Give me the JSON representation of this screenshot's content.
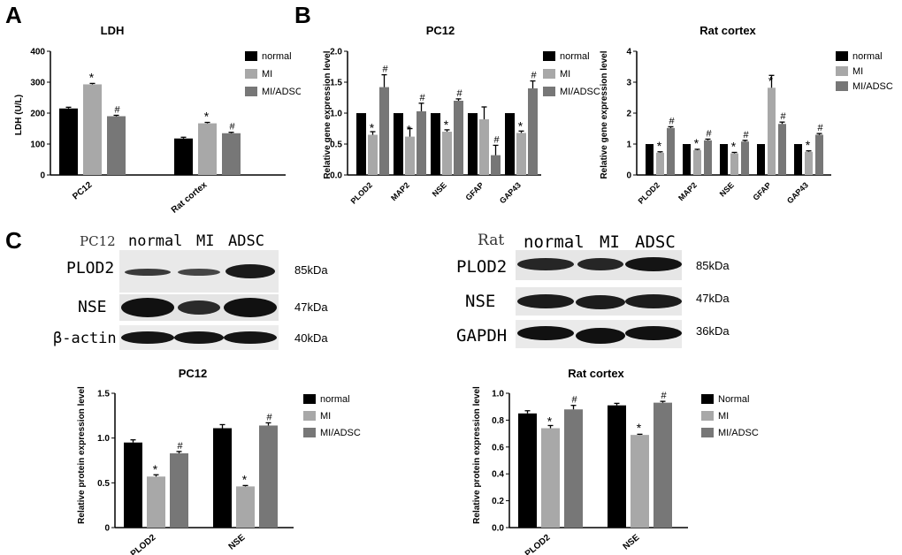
{
  "panels": {
    "a": "A",
    "b": "B",
    "c": "C"
  },
  "legend_colors": [
    "#000000",
    "#a8a8a8",
    "#777777"
  ],
  "chart_data": [
    {
      "id": "ldh",
      "type": "bar",
      "title": "LDH",
      "ylabel": "LDH (U/L)",
      "categories": [
        "PC12",
        "Rat cortex"
      ],
      "ylim": [
        0,
        400
      ],
      "yticks": [
        "0",
        "100",
        "200",
        "300",
        "400"
      ],
      "series": [
        {
          "name": "normal",
          "values": [
            215,
            118
          ],
          "errors": [
            4,
            4
          ],
          "marks": [
            "",
            ""
          ]
        },
        {
          "name": "MI",
          "values": [
            293,
            167
          ],
          "errors": [
            3,
            3
          ],
          "marks": [
            "*",
            "*"
          ]
        },
        {
          "name": "MI/ADSC",
          "values": [
            190,
            135
          ],
          "errors": [
            3,
            3
          ],
          "marks": [
            "#",
            "#"
          ]
        }
      ]
    },
    {
      "id": "pc12_gene",
      "type": "bar",
      "title": "PC12",
      "ylabel": "Relative gene expression level",
      "categories": [
        "PLOD2",
        "MAP2",
        "NSE",
        "GFAP",
        "GAP43"
      ],
      "ylim": [
        0,
        2.0
      ],
      "yticks": [
        "0.0",
        "0.5",
        "1.0",
        "1.5",
        "2.0"
      ],
      "series": [
        {
          "name": "normal",
          "values": [
            1.0,
            1.0,
            1.0,
            1.0,
            1.0
          ],
          "errors": [
            0,
            0,
            0,
            0,
            0
          ],
          "marks": [
            "",
            "",
            "",
            "",
            ""
          ]
        },
        {
          "name": "MI",
          "values": [
            0.65,
            0.62,
            0.7,
            0.9,
            0.68
          ],
          "errors": [
            0.05,
            0.13,
            0.03,
            0.2,
            0.03
          ],
          "marks": [
            "*",
            "*",
            "*",
            "",
            "*"
          ]
        },
        {
          "name": "MI/ADSC",
          "values": [
            1.42,
            1.03,
            1.2,
            0.32,
            1.4
          ],
          "errors": [
            0.2,
            0.13,
            0.03,
            0.16,
            0.12
          ],
          "marks": [
            "#",
            "#",
            "#",
            "#",
            "#"
          ]
        }
      ]
    },
    {
      "id": "rat_gene",
      "type": "bar",
      "title": "Rat cortex",
      "ylabel": "Relative gene expression level",
      "categories": [
        "PLOD2",
        "MAP2",
        "NSE",
        "GFAP",
        "GAP43"
      ],
      "ylim": [
        0,
        4
      ],
      "yticks": [
        "0",
        "1",
        "2",
        "3",
        "4"
      ],
      "series": [
        {
          "name": "normal",
          "values": [
            1.0,
            1.0,
            1.0,
            1.0,
            1.0
          ],
          "errors": [
            0,
            0,
            0,
            0,
            0
          ],
          "marks": [
            "",
            "",
            "",
            "",
            ""
          ]
        },
        {
          "name": "MI",
          "values": [
            0.72,
            0.8,
            0.7,
            2.82,
            0.75
          ],
          "errors": [
            0.03,
            0.03,
            0.03,
            0.4,
            0.03
          ],
          "marks": [
            "*",
            "*",
            "*",
            "*",
            "*"
          ]
        },
        {
          "name": "MI/ADSC",
          "values": [
            1.52,
            1.12,
            1.08,
            1.65,
            1.3
          ],
          "errors": [
            0.04,
            0.04,
            0.04,
            0.06,
            0.04
          ],
          "marks": [
            "#",
            "#",
            "#",
            "#",
            "#"
          ]
        }
      ]
    },
    {
      "id": "pc12_protein",
      "type": "bar",
      "title": "PC12",
      "ylabel": "Relative protein expression level",
      "categories": [
        "PLOD2",
        "NSE"
      ],
      "ylim": [
        0,
        1.5
      ],
      "yticks": [
        "0",
        "0.5",
        "1.0",
        "1.5"
      ],
      "series": [
        {
          "name": "normal",
          "values": [
            0.95,
            1.11
          ],
          "errors": [
            0.03,
            0.04
          ],
          "marks": [
            "",
            ""
          ]
        },
        {
          "name": "MI",
          "values": [
            0.57,
            0.46
          ],
          "errors": [
            0.02,
            0.01
          ],
          "marks": [
            "*",
            "*"
          ]
        },
        {
          "name": "MI/ADSC",
          "values": [
            0.83,
            1.14
          ],
          "errors": [
            0.02,
            0.03
          ],
          "marks": [
            "#",
            "#"
          ]
        }
      ]
    },
    {
      "id": "rat_protein",
      "type": "bar",
      "title": "Rat cortex",
      "ylabel": "Relative protein expression level",
      "categories": [
        "PLOD2",
        "NSE"
      ],
      "ylim": [
        0,
        1.0
      ],
      "yticks": [
        "0.0",
        "0.2",
        "0.4",
        "0.6",
        "0.8",
        "1.0"
      ],
      "series": [
        {
          "name": "Normal",
          "values": [
            0.85,
            0.91
          ],
          "errors": [
            0.02,
            0.015
          ],
          "marks": [
            "",
            ""
          ]
        },
        {
          "name": "MI",
          "values": [
            0.74,
            0.69
          ],
          "errors": [
            0.02,
            0.005
          ],
          "marks": [
            "*",
            "*"
          ]
        },
        {
          "name": "MI/ADSC",
          "values": [
            0.88,
            0.93
          ],
          "errors": [
            0.03,
            0.01
          ],
          "marks": [
            "#",
            "#"
          ]
        }
      ]
    }
  ],
  "blots": {
    "pc12": {
      "header": "PC12",
      "lanes": [
        "normal",
        "MI",
        "ADSC"
      ],
      "rows": [
        {
          "label": "PLOD2",
          "kda": "85kDa"
        },
        {
          "label": "NSE",
          "kda": "47kDa"
        },
        {
          "label": "β-actin",
          "kda": "40kDa"
        }
      ]
    },
    "rat": {
      "header": "Rat",
      "lanes": [
        "normal",
        "MI",
        "ADSC"
      ],
      "rows": [
        {
          "label": "PLOD2",
          "kda": "85kDa"
        },
        {
          "label": "NSE",
          "kda": "47kDa"
        },
        {
          "label": "GAPDH",
          "kda": "36kDa"
        }
      ]
    }
  }
}
